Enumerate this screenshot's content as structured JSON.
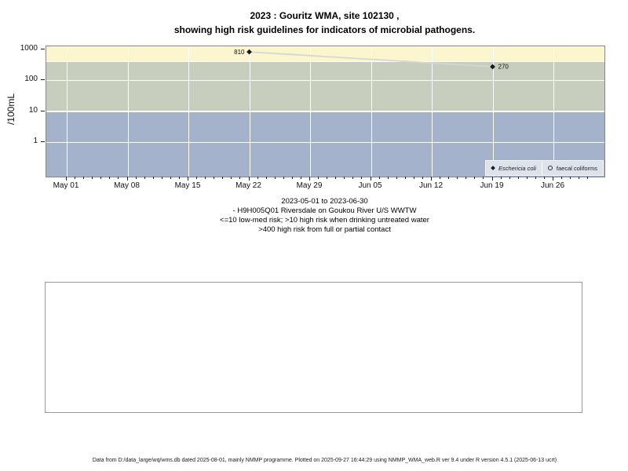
{
  "title": {
    "line1": "2023 : Gouritz WMA, site 102130 ,",
    "line2": "showing high risk guidelines for indicators of microbial pathogens."
  },
  "chart_data": {
    "type": "scatter",
    "x_axis": {
      "start_date": "2023-05-01",
      "end_date": "2023-06-30",
      "tick_labels": [
        "May 01",
        "May 08",
        "May 15",
        "May 22",
        "May 29",
        "Jun 05",
        "Jun 12",
        "Jun 19",
        "Jun 26"
      ],
      "tick_days": [
        0,
        7,
        14,
        21,
        28,
        35,
        42,
        49,
        56
      ],
      "minor_tick_interval_days": 1,
      "total_days": 60
    },
    "y_axis": {
      "label": "/100mL",
      "scale": "log10",
      "tick_values": [
        1000,
        100,
        10,
        1
      ],
      "tick_labels": [
        "1000",
        "100",
        "10",
        "1"
      ]
    },
    "series": [
      {
        "name": "Eschericia coli",
        "marker": "filled-diamond",
        "points": [
          {
            "date": "2023-05-22",
            "x_day": 21,
            "value": 810,
            "label": "810",
            "label_side": "left"
          },
          {
            "date": "2023-06-19",
            "x_day": 49,
            "value": 270,
            "label": "270",
            "label_side": "right"
          }
        ]
      },
      {
        "name": "faecal coliforms",
        "marker": "open-circle",
        "points": []
      }
    ],
    "risk_bands": [
      {
        "label": ">400 high risk from full or partial contact",
        "min": 400,
        "max": null,
        "color": "#FBF6CE"
      },
      {
        "label": ">10 high risk when drinking untreated water",
        "min": 10,
        "max": 400,
        "color": "#C8CEBD"
      },
      {
        "label": "<=10 low-med risk",
        "min": null,
        "max": 10,
        "color": "#A4B3CB"
      }
    ],
    "styles": {
      "grid_color": "#FFFFFF",
      "line_color": "#D6D6D6",
      "marker_color": "#1A1A1A",
      "legend_bg": "#DDE2EC"
    },
    "legend_position": "bottom-right",
    "grid": true
  },
  "caption": {
    "lines": [
      "2023-05-01 to 2023-06-30",
      "- H9H005Q01 Riversdale on Goukou River U/S WWTW",
      "<=10 low-med risk; >10 high risk when drinking untreated water",
      ">400 high risk from full or partial contact"
    ]
  },
  "footer": {
    "text": "Data from D:/data_large/wq/wms.db dated 2025-08-01, mainly NMMP programme. Plotted on 2025-09-27 16:44:29 using NMMP_WMA_web.R ver 9.4 under R version 4.5.1 (2025-06-13 ucrt)"
  }
}
